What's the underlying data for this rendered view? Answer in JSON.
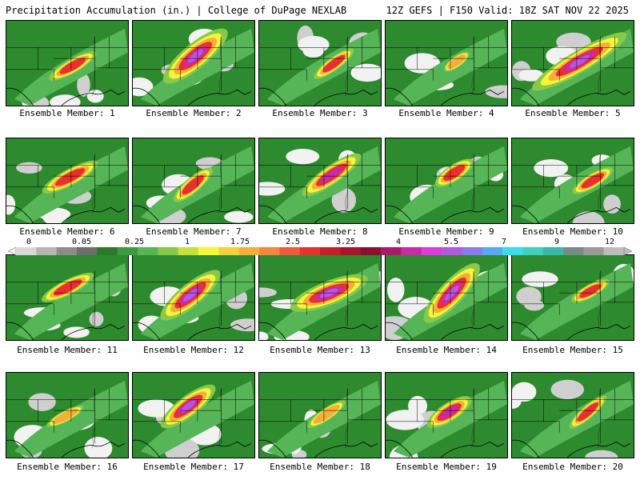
{
  "header": {
    "left": "Precipitation Accumulation (in.) | College of DuPage NEXLAB",
    "right": "12Z GEFS | F150 Valid: 18Z SAT NOV 22 2025"
  },
  "colorbar": {
    "labels": [
      "0",
      "0.05",
      "0.25",
      "1",
      "1.75",
      "2.5",
      "3.25",
      "4",
      "5.5",
      "7",
      "9",
      "12"
    ],
    "colors": [
      "#d9d9d9",
      "#b5b5b5",
      "#8c8c8c",
      "#6e6e6e",
      "#2a7a2a",
      "#3f9a3f",
      "#56b556",
      "#88c94a",
      "#c8e03c",
      "#f5f53a",
      "#f5d23a",
      "#f5ae3a",
      "#f5873a",
      "#f05a3a",
      "#e8302f",
      "#c81e28",
      "#a8142a",
      "#8a1030",
      "#aa1a6a",
      "#c82aa8",
      "#e03ae0",
      "#b456e6",
      "#8a7af0",
      "#5aa8f5",
      "#3adcf0",
      "#40d0c0",
      "#38b8a8",
      "#7a8a8a",
      "#9a9a9a",
      "#bdbdbd"
    ]
  },
  "members": [
    {
      "label": "Ensemble Member: 1",
      "intensity": 0.5
    },
    {
      "label": "Ensemble Member: 2",
      "intensity": 1.0
    },
    {
      "label": "Ensemble Member: 3",
      "intensity": 0.45
    },
    {
      "label": "Ensemble Member: 4",
      "intensity": 0.35
    },
    {
      "label": "Ensemble Member: 5",
      "intensity": 0.85
    },
    {
      "label": "Ensemble Member: 6",
      "intensity": 0.6
    },
    {
      "label": "Ensemble Member: 7",
      "intensity": 0.55
    },
    {
      "label": "Ensemble Member: 8",
      "intensity": 0.7
    },
    {
      "label": "Ensemble Member: 9",
      "intensity": 0.6
    },
    {
      "label": "Ensemble Member: 10",
      "intensity": 0.5
    },
    {
      "label": "Ensemble Member: 11",
      "intensity": 0.55
    },
    {
      "label": "Ensemble Member: 12",
      "intensity": 0.9
    },
    {
      "label": "Ensemble Member: 13",
      "intensity": 0.95
    },
    {
      "label": "Ensemble Member: 14",
      "intensity": 0.95
    },
    {
      "label": "Ensemble Member: 15",
      "intensity": 0.45
    },
    {
      "label": "Ensemble Member: 16",
      "intensity": 0.35
    },
    {
      "label": "Ensemble Member: 17",
      "intensity": 0.8
    },
    {
      "label": "Ensemble Member: 18",
      "intensity": 0.4
    },
    {
      "label": "Ensemble Member: 19",
      "intensity": 0.7
    },
    {
      "label": "Ensemble Member: 20",
      "intensity": 0.45
    }
  ]
}
